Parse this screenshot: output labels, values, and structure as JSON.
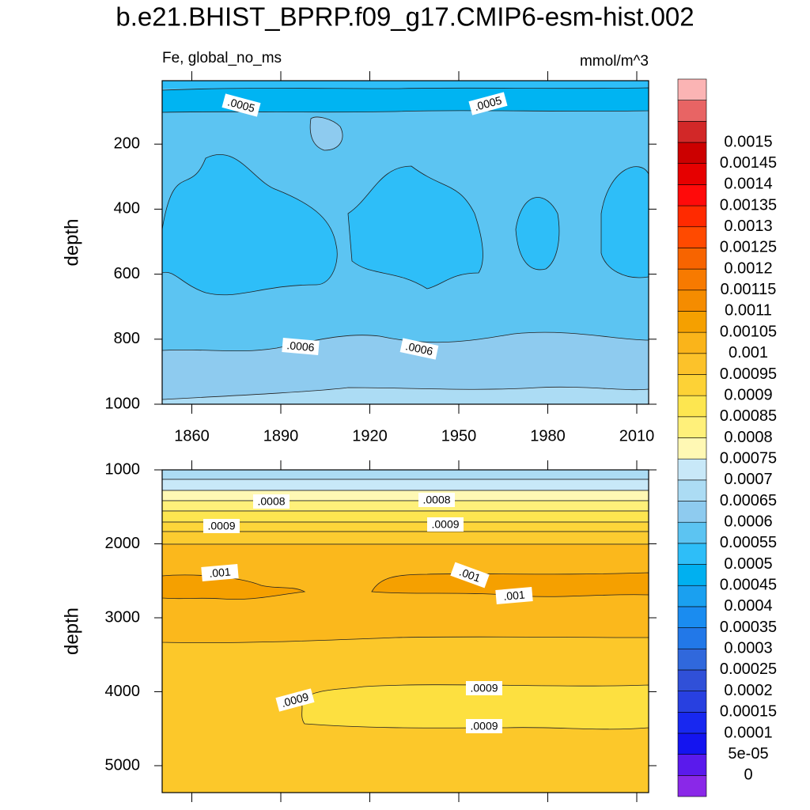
{
  "chart_data": [
    {
      "type": "contour",
      "title": "b.e21.BHIST_BPRP.f09_g17.CMIP6-esm-hist.002",
      "subtitle_left": "Fe, global_no_ms",
      "subtitle_right": "mmol/m^3",
      "ylabel": "depth",
      "xlim": [
        1850,
        2014
      ],
      "xticks": [
        1860,
        1890,
        1920,
        1950,
        1980,
        2010
      ],
      "show_xtick_labels": true,
      "ylim": [
        0,
        1000
      ],
      "yticks": [
        200,
        400,
        600,
        800,
        1000
      ],
      "contour_labels": [
        ".0005",
        ".0005",
        ".0006",
        ".0006"
      ],
      "colorbar": {
        "levels": [
          0,
          {
            "value": 5e-05,
            "label": "5e-05"
          },
          0.0001,
          0.00015,
          0.0002,
          0.00025,
          0.0003,
          0.00035,
          0.0004,
          0.00045,
          0.0005,
          0.00055,
          0.0006,
          0.00065,
          0.0007,
          0.00075,
          0.0008,
          0.00085,
          0.0009,
          0.00095,
          0.001,
          0.00105,
          0.0011,
          0.00115,
          0.0012,
          0.00125,
          0.0013,
          0.00135,
          0.0014,
          0.00145,
          0.0015
        ],
        "colors": [
          "#8a28e8",
          "#5a1aec",
          "#1414f0",
          "#1828f0",
          "#2840e0",
          "#3050d8",
          "#3068dc",
          "#2278e8",
          "#1a8cf0",
          "#1aa0f0",
          "#00b0f0",
          "#2ebef8",
          "#5cc4f2",
          "#8ecbef",
          "#acdcf4",
          "#c8e8f8",
          "#fff8b4",
          "#fff07a",
          "#fde650",
          "#fdd236",
          "#fcc22a",
          "#fab41a",
          "#f5a000",
          "#f58c00",
          "#f77a00",
          "#f76400",
          "#ff4a00",
          "#ff2a00",
          "#ff0a0a",
          "#e60000",
          "#cc0000",
          "#d22828",
          "#e86464",
          "#fbb4b4"
        ]
      }
    },
    {
      "type": "contour",
      "ylabel": "depth",
      "xlim": [
        1850,
        2014
      ],
      "xticks": [
        1860,
        1890,
        1920,
        1950,
        1980,
        2010
      ],
      "show_xtick_labels": false,
      "ylim": [
        1000,
        5364
      ],
      "yticks": [
        1000,
        2000,
        3000,
        4000,
        5000
      ],
      "contour_labels": [
        ".0008",
        ".0008",
        ".0009",
        ".0009",
        ".001",
        ".001",
        ".001",
        ".0009",
        ".0009",
        ".0009"
      ]
    }
  ]
}
